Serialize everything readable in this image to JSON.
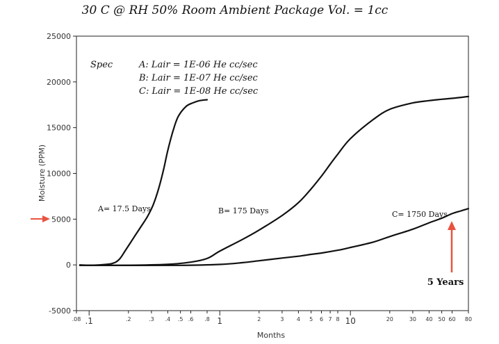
{
  "header": {
    "subtitle": "30 C  @ RH 50% Room Ambient  Package Vol. = 1cc"
  },
  "chart_data": {
    "type": "line",
    "xlabel": "Months",
    "ylabel": "Moisture (PPM)",
    "x_scale": "log",
    "xlim": [
      0.08,
      80
    ],
    "ylim": [
      -5000,
      25000
    ],
    "yticks": [
      -5000,
      0,
      5000,
      10000,
      15000,
      20000,
      25000
    ],
    "xticks": [
      0.08,
      0.1,
      0.2,
      0.3,
      0.4,
      0.5,
      0.6,
      0.8,
      1,
      2,
      3,
      4,
      5,
      6,
      7,
      8,
      10,
      20,
      30,
      40,
      50,
      60,
      80
    ],
    "xtick_labels": [
      ".08",
      ".1",
      ".2",
      ".3",
      ".4",
      ".5",
      ".6",
      ".8",
      "1",
      "2",
      "3",
      "4",
      "5",
      "6",
      "7",
      "8",
      "10",
      "20",
      "30",
      "40",
      "50",
      "60",
      "80"
    ],
    "grid": false,
    "line_color": "#111111",
    "series": [
      {
        "label": "A= 17.5 Days",
        "x": [
          0.085,
          0.1,
          0.12,
          0.15,
          0.17,
          0.19,
          0.22,
          0.25,
          0.28,
          0.31,
          0.34,
          0.37,
          0.4,
          0.44,
          0.48,
          0.55,
          0.62,
          0.7,
          0.8
        ],
        "y": [
          0,
          -40,
          0,
          150,
          600,
          1600,
          3000,
          4200,
          5300,
          6600,
          8300,
          10300,
          12500,
          14700,
          16200,
          17300,
          17700,
          17950,
          18050
        ]
      },
      {
        "label": "B= 175 Days",
        "x": [
          0.085,
          0.2,
          0.4,
          0.6,
          0.8,
          1,
          1.5,
          2,
          3,
          4,
          5,
          6,
          7,
          8,
          10,
          15,
          20,
          30,
          40,
          50,
          60,
          80
        ],
        "y": [
          -50,
          -40,
          60,
          300,
          700,
          1500,
          2800,
          3800,
          5400,
          6800,
          8300,
          9700,
          11000,
          12100,
          13800,
          15900,
          17000,
          17700,
          17950,
          18100,
          18200,
          18400
        ]
      },
      {
        "label": "C= 1750 Days",
        "x": [
          0.085,
          0.5,
          1,
          1.5,
          2,
          3,
          4,
          5,
          6,
          8,
          10,
          15,
          20,
          30,
          40,
          50,
          60,
          70,
          80
        ],
        "y": [
          -50,
          -50,
          50,
          250,
          450,
          750,
          950,
          1150,
          1300,
          1600,
          1900,
          2500,
          3100,
          3900,
          4600,
          5100,
          5600,
          5900,
          6150
        ]
      }
    ],
    "legend_box": {
      "title": "Spec",
      "entries": [
        "A: Lair = 1E-06 He cc/sec",
        "B: Lair = 1E-07 He cc/sec",
        "C: Lair = 1E-08  He cc/sec"
      ]
    },
    "annotations": {
      "five_years": "5 Years",
      "arrow_color": "#e8533f"
    }
  }
}
